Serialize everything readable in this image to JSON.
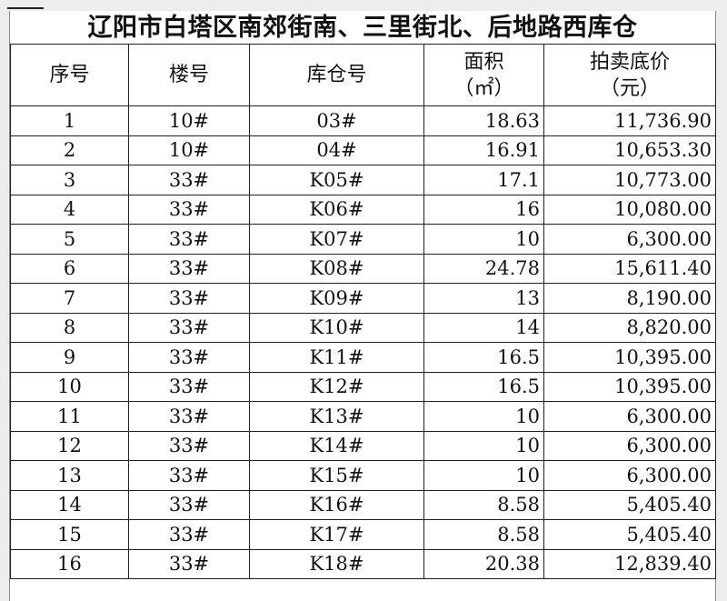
{
  "title": "辽阳市白塔区南郊街南、三里街北、后地路西库仓",
  "headers": {
    "index": "序号",
    "building": "楼号",
    "warehouse": "库仓号",
    "area_line1": "面积",
    "area_line2": "（㎡）",
    "price_line1": "拍卖底价",
    "price_line2": "（元）"
  },
  "rows": [
    {
      "index": "1",
      "building": "10#",
      "warehouse": "03#",
      "area": "18.63",
      "price": "11,736.90"
    },
    {
      "index": "2",
      "building": "10#",
      "warehouse": "04#",
      "area": "16.91",
      "price": "10,653.30"
    },
    {
      "index": "3",
      "building": "33#",
      "warehouse": "K05#",
      "area": "17.1",
      "price": "10,773.00"
    },
    {
      "index": "4",
      "building": "33#",
      "warehouse": "K06#",
      "area": "16",
      "price": "10,080.00"
    },
    {
      "index": "5",
      "building": "33#",
      "warehouse": "K07#",
      "area": "10",
      "price": "6,300.00"
    },
    {
      "index": "6",
      "building": "33#",
      "warehouse": "K08#",
      "area": "24.78",
      "price": "15,611.40"
    },
    {
      "index": "7",
      "building": "33#",
      "warehouse": "K09#",
      "area": "13",
      "price": "8,190.00"
    },
    {
      "index": "8",
      "building": "33#",
      "warehouse": "K10#",
      "area": "14",
      "price": "8,820.00"
    },
    {
      "index": "9",
      "building": "33#",
      "warehouse": "K11#",
      "area": "16.5",
      "price": "10,395.00"
    },
    {
      "index": "10",
      "building": "33#",
      "warehouse": "K12#",
      "area": "16.5",
      "price": "10,395.00"
    },
    {
      "index": "11",
      "building": "33#",
      "warehouse": "K13#",
      "area": "10",
      "price": "6,300.00"
    },
    {
      "index": "12",
      "building": "33#",
      "warehouse": "K14#",
      "area": "10",
      "price": "6,300.00"
    },
    {
      "index": "13",
      "building": "33#",
      "warehouse": "K15#",
      "area": "10",
      "price": "6,300.00"
    },
    {
      "index": "14",
      "building": "33#",
      "warehouse": "K16#",
      "area": "8.58",
      "price": "5,405.40"
    },
    {
      "index": "15",
      "building": "33#",
      "warehouse": "K17#",
      "area": "8.58",
      "price": "5,405.40"
    },
    {
      "index": "16",
      "building": "33#",
      "warehouse": "K18#",
      "area": "20.38",
      "price": "12,839.40"
    }
  ]
}
